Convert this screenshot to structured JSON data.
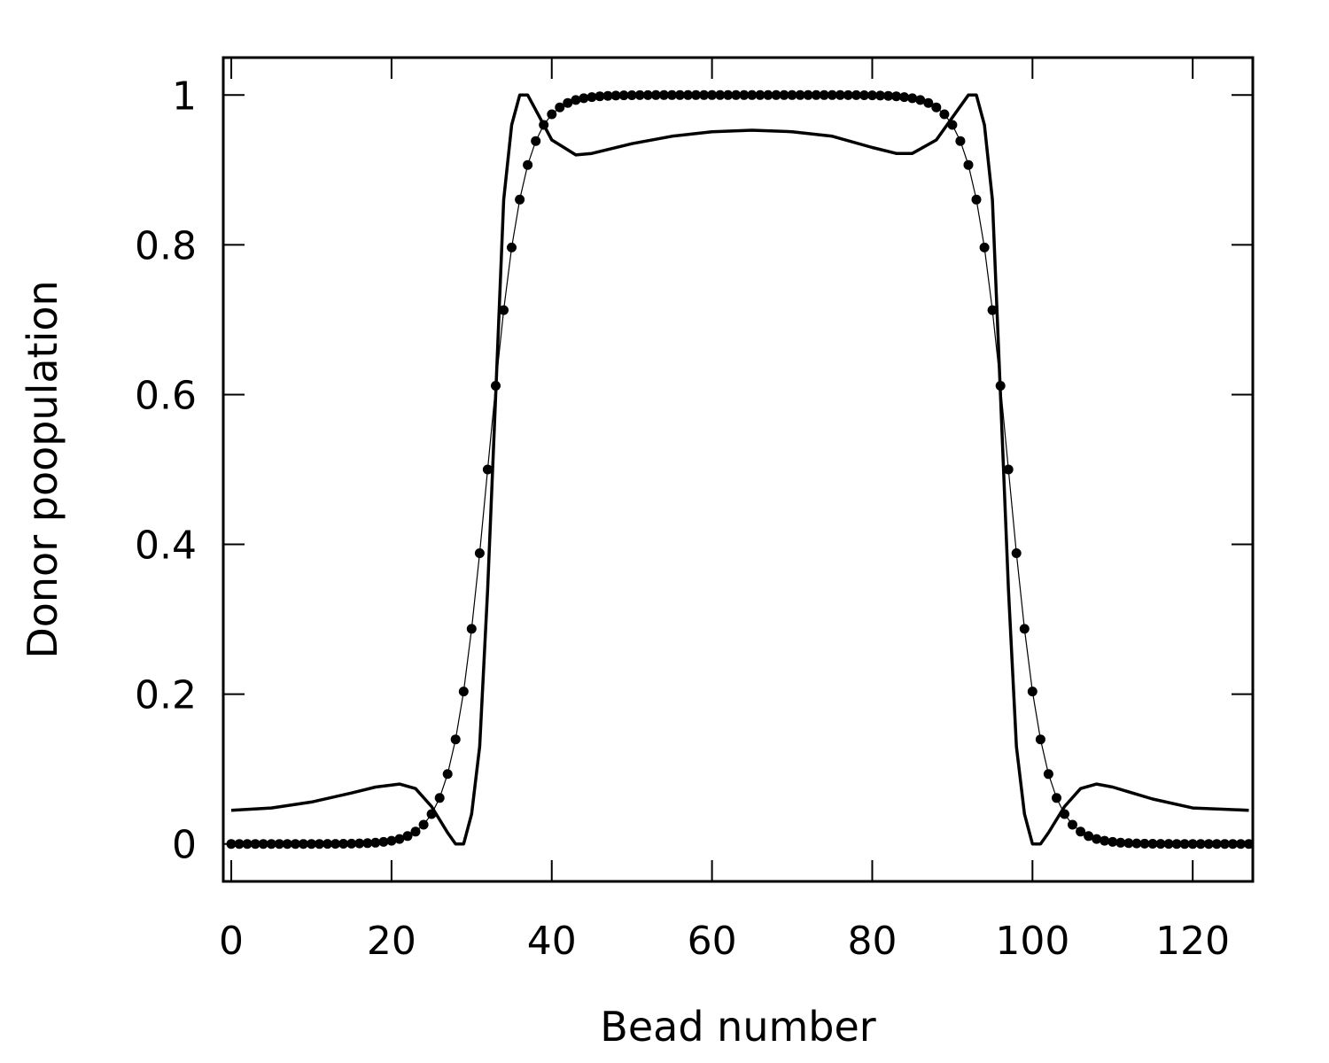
{
  "chart_data": {
    "type": "line",
    "title": "",
    "xlabel": "Bead number",
    "ylabel": "Donor poopulation",
    "xlim": [
      -1,
      127.5
    ],
    "ylim": [
      -0.05,
      1.05
    ],
    "x_ticks": [
      0,
      20,
      40,
      60,
      80,
      100,
      120
    ],
    "x_tick_labels": [
      "0",
      "20",
      "40",
      "60",
      "80",
      "100",
      "120"
    ],
    "y_ticks": [
      0,
      0.2,
      0.4,
      0.6,
      0.8,
      1
    ],
    "y_tick_labels": [
      "0",
      "0.2",
      "0.4",
      "0.6",
      "0.8",
      "1"
    ],
    "grid": false,
    "legend": "none",
    "series": [
      {
        "style": "thick solid line",
        "color": "#000000",
        "x": [
          0,
          5,
          10,
          15,
          18,
          21,
          23,
          25,
          27,
          28,
          29,
          30,
          31,
          32,
          33,
          34,
          35,
          36,
          37,
          38,
          40,
          43,
          45,
          50,
          55,
          60,
          65,
          70,
          75,
          80,
          83,
          85,
          88,
          90,
          92,
          93,
          94,
          95,
          96,
          97,
          98,
          99,
          100,
          101,
          102,
          104,
          106,
          108,
          110,
          115,
          120,
          127
        ],
        "y": [
          0.045,
          0.048,
          0.056,
          0.068,
          0.076,
          0.08,
          0.074,
          0.05,
          0.015,
          0.0,
          0.0,
          0.04,
          0.13,
          0.34,
          0.6,
          0.86,
          0.96,
          1.0,
          1.0,
          0.98,
          0.94,
          0.92,
          0.922,
          0.935,
          0.945,
          0.951,
          0.953,
          0.951,
          0.945,
          0.93,
          0.922,
          0.922,
          0.94,
          0.97,
          1.0,
          1.0,
          0.96,
          0.86,
          0.6,
          0.34,
          0.13,
          0.04,
          0.0,
          0.0,
          0.015,
          0.05,
          0.074,
          0.08,
          0.076,
          0.06,
          0.048,
          0.045
        ]
      },
      {
        "style": "dotted markers with thin line",
        "color": "#000000",
        "x0": 0,
        "x1": 127,
        "center_left": 32,
        "center_right": 97,
        "width": 2.2
      }
    ]
  }
}
